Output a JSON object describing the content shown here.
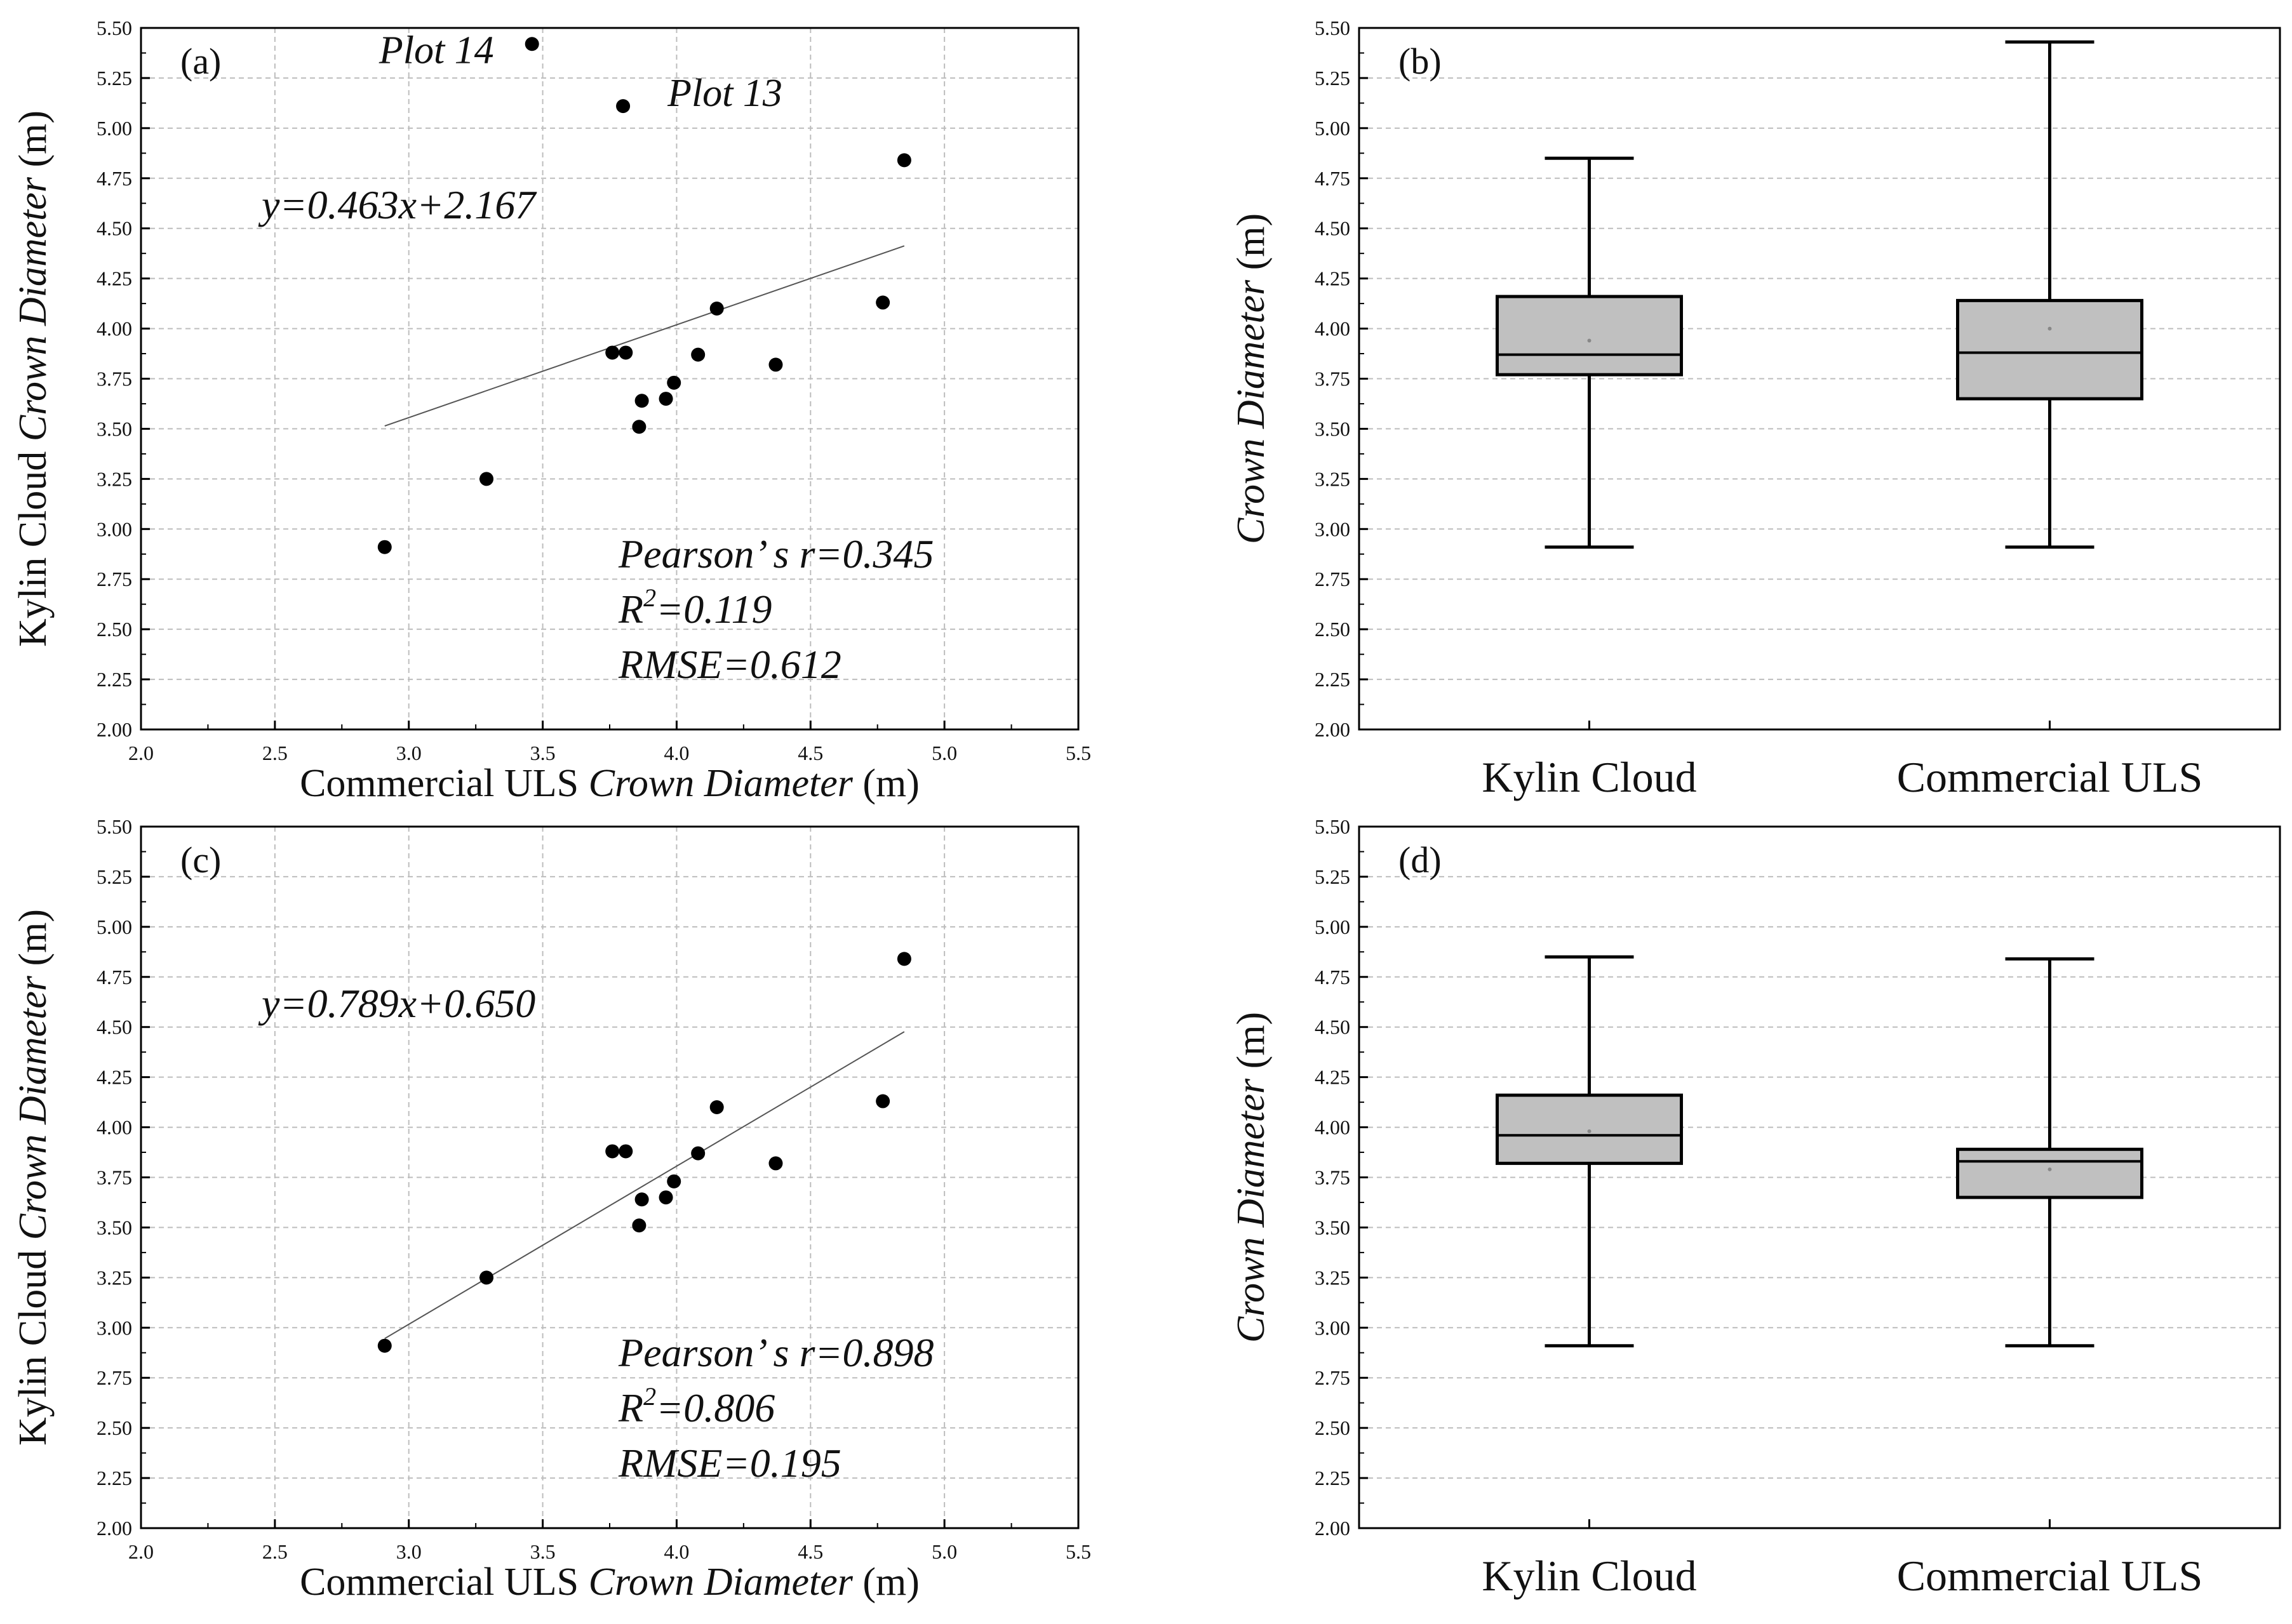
{
  "chart_data": [
    {
      "panel": "(a)",
      "type": "scatter",
      "xlabel_prefix": "Commercial ULS ",
      "xlabel_italic": "Crown Diameter",
      "xlabel_suffix": " (m)",
      "ylabel_prefix": "Kylin Cloud ",
      "ylabel_italic": "Crown Diameter",
      "ylabel_suffix": " (m)",
      "xlim": [
        2.0,
        5.5
      ],
      "ylim": [
        2.0,
        5.5
      ],
      "xticks": [
        "2.0",
        "2.5",
        "3.0",
        "3.5",
        "4.0",
        "4.5",
        "5.0",
        "5.5"
      ],
      "yticks": [
        "2.00",
        "2.25",
        "2.50",
        "2.75",
        "3.00",
        "3.25",
        "3.50",
        "3.75",
        "4.00",
        "4.25",
        "4.50",
        "4.75",
        "5.00",
        "5.25",
        "5.50"
      ],
      "points": [
        [
          2.91,
          2.91
        ],
        [
          3.29,
          3.25
        ],
        [
          3.46,
          5.42
        ],
        [
          3.76,
          3.88
        ],
        [
          3.8,
          5.11
        ],
        [
          3.81,
          3.88
        ],
        [
          3.86,
          3.51
        ],
        [
          3.87,
          3.64
        ],
        [
          3.96,
          3.65
        ],
        [
          3.99,
          3.73
        ],
        [
          4.08,
          3.87
        ],
        [
          4.15,
          4.1
        ],
        [
          4.37,
          3.82
        ],
        [
          4.77,
          4.13
        ],
        [
          4.85,
          4.84
        ]
      ],
      "fit_line": {
        "slope": 0.463,
        "intercept": 2.167,
        "x_range": [
          2.91,
          4.85
        ]
      },
      "equation": "y=0.463x+2.167",
      "pearson": "Pearson’ s r=0.345",
      "r2_prefix": "R",
      "r2_sup": "2",
      "r2_value": "=0.119",
      "rmse": "RMSE=0.612",
      "labels": [
        {
          "text": "Plot 14",
          "x": 3.46,
          "y": 5.42
        },
        {
          "text": "Plot 13",
          "x": 3.8,
          "y": 5.11
        }
      ]
    },
    {
      "panel": "(b)",
      "type": "box",
      "ylabel_italic": "Crown Diameter",
      "ylabel_suffix": " (m)",
      "ylim": [
        2.0,
        5.5
      ],
      "yticks": [
        "2.00",
        "2.25",
        "2.50",
        "2.75",
        "3.00",
        "3.25",
        "3.50",
        "3.75",
        "4.00",
        "4.25",
        "4.50",
        "4.75",
        "5.00",
        "5.25",
        "5.50"
      ],
      "categories": [
        "Kylin Cloud",
        "Commercial ULS"
      ],
      "boxes": [
        {
          "min": 2.91,
          "q1": 3.77,
          "median": 3.87,
          "q3": 4.16,
          "max": 4.85,
          "mean": 3.94
        },
        {
          "min": 2.91,
          "q1": 3.65,
          "median": 3.88,
          "q3": 4.14,
          "max": 5.43,
          "mean": 4.0
        }
      ]
    },
    {
      "panel": "(c)",
      "type": "scatter",
      "xlabel_prefix": "Commercial ULS ",
      "xlabel_italic": "Crown Diameter",
      "xlabel_suffix": " (m)",
      "ylabel_prefix": "Kylin Cloud ",
      "ylabel_italic": "Crown Diameter",
      "ylabel_suffix": " (m)",
      "xlim": [
        2.0,
        5.5
      ],
      "ylim": [
        2.0,
        5.5
      ],
      "xticks": [
        "2.0",
        "2.5",
        "3.0",
        "3.5",
        "4.0",
        "4.5",
        "5.0",
        "5.5"
      ],
      "yticks": [
        "2.00",
        "2.25",
        "2.50",
        "2.75",
        "3.00",
        "3.25",
        "3.50",
        "3.75",
        "4.00",
        "4.25",
        "4.50",
        "4.75",
        "5.00",
        "5.25",
        "5.50"
      ],
      "points": [
        [
          2.91,
          2.91
        ],
        [
          3.29,
          3.25
        ],
        [
          3.76,
          3.88
        ],
        [
          3.81,
          3.88
        ],
        [
          3.86,
          3.51
        ],
        [
          3.87,
          3.64
        ],
        [
          3.96,
          3.65
        ],
        [
          3.99,
          3.73
        ],
        [
          4.08,
          3.87
        ],
        [
          4.15,
          4.1
        ],
        [
          4.37,
          3.82
        ],
        [
          4.77,
          4.13
        ],
        [
          4.85,
          4.84
        ]
      ],
      "fit_line": {
        "slope": 0.789,
        "intercept": 0.65,
        "x_range": [
          2.91,
          4.85
        ]
      },
      "equation": "y=0.789x+0.650",
      "pearson": "Pearson’ s r=0.898",
      "r2_prefix": "R",
      "r2_sup": "2",
      "r2_value": "=0.806",
      "rmse": "RMSE=0.195",
      "labels": []
    },
    {
      "panel": "(d)",
      "type": "box",
      "ylabel_italic": "Crown Diameter",
      "ylabel_suffix": " (m)",
      "ylim": [
        2.0,
        5.5
      ],
      "yticks": [
        "2.00",
        "2.25",
        "2.50",
        "2.75",
        "3.00",
        "3.25",
        "3.50",
        "3.75",
        "4.00",
        "4.25",
        "4.50",
        "4.75",
        "5.00",
        "5.25",
        "5.50"
      ],
      "categories": [
        "Kylin Cloud",
        "Commercial ULS"
      ],
      "boxes": [
        {
          "min": 2.91,
          "q1": 3.82,
          "median": 3.96,
          "q3": 4.16,
          "max": 4.85,
          "mean": 3.98
        },
        {
          "min": 2.91,
          "q1": 3.65,
          "median": 3.83,
          "q3": 3.89,
          "max": 4.84,
          "mean": 3.79
        }
      ]
    }
  ],
  "colors": {
    "axis": "#000000",
    "grid": "#bdbdbd",
    "box_fill": "#c0c0c0",
    "fit_line": "#555555",
    "mean_dot": "#888888"
  }
}
